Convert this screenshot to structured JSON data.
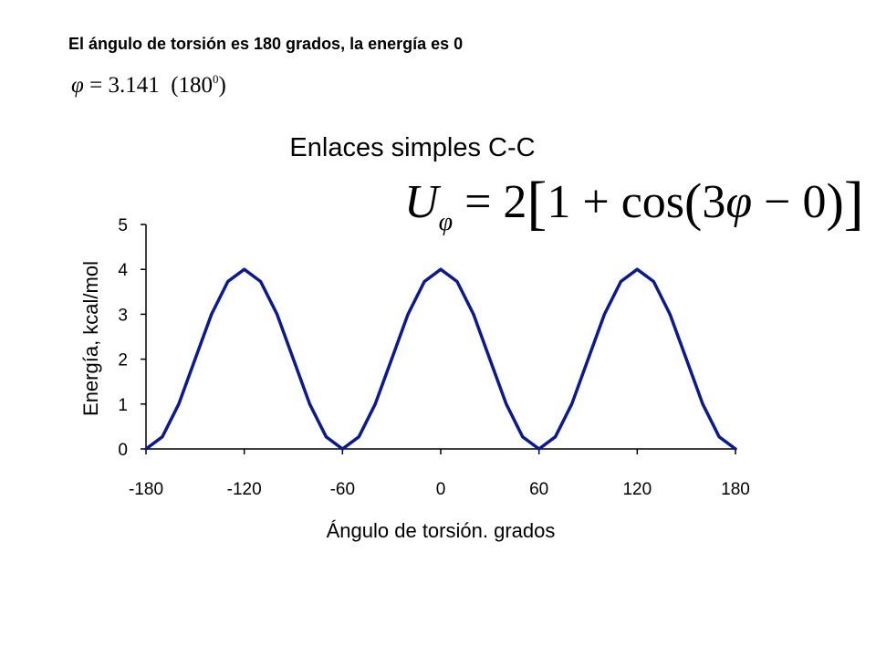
{
  "heading": "El ángulo de torsión es 180 grados, la energía es 0",
  "phi_equation": {
    "symbol": "φ",
    "equals_value": " = 3.141",
    "paren_open": "(180",
    "superscript": "0",
    "paren_close": ")"
  },
  "formula": {
    "lhs": "U",
    "lhs_sub": "φ",
    "rhs_parts": [
      "= 2",
      "[",
      "1 + cos",
      "(",
      "3",
      "φ",
      " − 0",
      ")",
      "]"
    ]
  },
  "colors": {
    "curve": "#0b1a8c",
    "axis": "#000000"
  },
  "chart_data": {
    "type": "line",
    "title": "Enlaces simples C-C",
    "xlabel": "Ángulo de torsión. grados",
    "ylabel": "Energía, kcal/mol",
    "xlim": [
      -180,
      180
    ],
    "ylim": [
      0,
      5
    ],
    "xticks": [
      -180,
      -120,
      -60,
      0,
      60,
      120,
      180
    ],
    "yticks": [
      0,
      1,
      2,
      3,
      4,
      5
    ],
    "grid": false,
    "series": [
      {
        "x": [
          -180,
          -170,
          -160,
          -150,
          -140,
          -130,
          -120,
          -110,
          -100,
          -90,
          -80,
          -70,
          -60,
          -50,
          -40,
          -30,
          -20,
          -10,
          0,
          10,
          20,
          30,
          40,
          50,
          60,
          70,
          80,
          90,
          100,
          110,
          120,
          130,
          140,
          150,
          160,
          170,
          180
        ],
        "y": [
          0,
          0.27,
          1,
          2,
          3,
          3.73,
          4,
          3.73,
          3,
          2,
          1,
          0.27,
          0,
          0.27,
          1,
          2,
          3,
          3.73,
          4,
          3.73,
          3,
          2,
          1,
          0.27,
          0,
          0.27,
          1,
          2,
          3,
          3.73,
          4,
          3.73,
          3,
          2,
          1,
          0.27,
          0
        ]
      }
    ]
  }
}
